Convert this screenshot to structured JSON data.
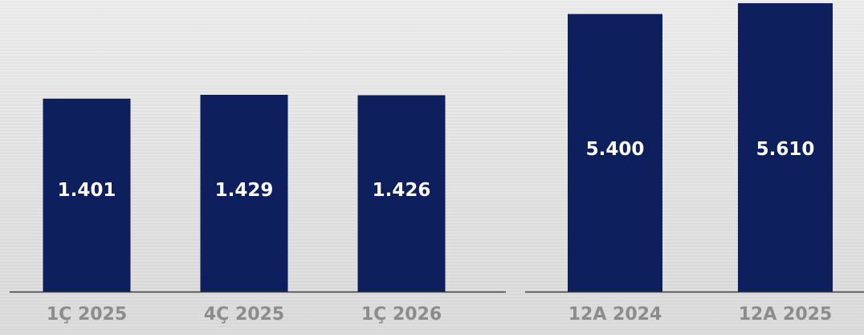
{
  "chart_data": [
    {
      "type": "bar",
      "categories": [
        "1Ç 2025",
        "4Ç 2025",
        "1Ç 2026"
      ],
      "values": [
        1401,
        1429,
        1426
      ],
      "value_labels": [
        "1.401",
        "1.429",
        "1.426"
      ],
      "bar_color": "#0d1f5c",
      "title": "",
      "xlabel": "",
      "ylabel": "",
      "grid": false
    },
    {
      "type": "bar",
      "categories": [
        "12A 2024",
        "12A 2025"
      ],
      "values": [
        5400,
        5610
      ],
      "value_labels": [
        "5.400",
        "5.610"
      ],
      "bar_color": "#0d1f5c",
      "title": "",
      "xlabel": "",
      "ylabel": "",
      "grid": false
    }
  ],
  "colors": {
    "bar": "#0d1f5c",
    "axis": "#3a3a3a",
    "category_text": "#8c8c8c",
    "value_text": "#ffffff"
  }
}
